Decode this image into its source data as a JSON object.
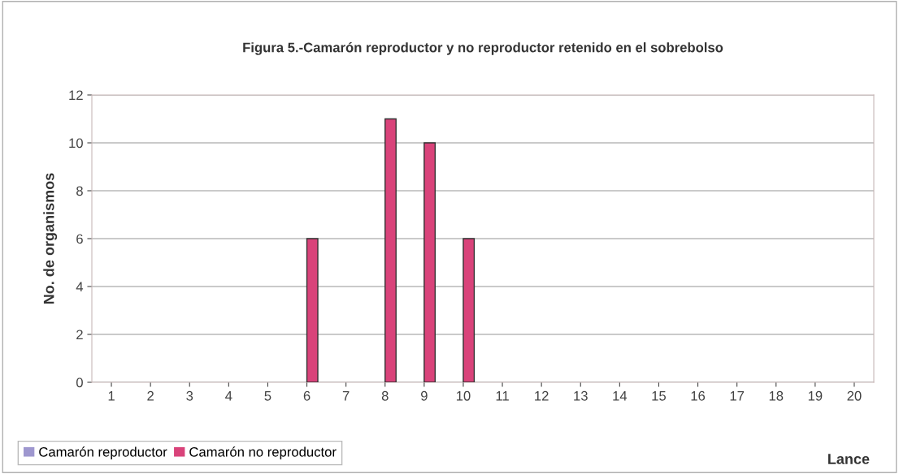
{
  "chart_data": {
    "type": "bar",
    "title": "Figura 5.-Camarón reproductor y no reproductor retenido en el sobrebolso",
    "xlabel": "Lance",
    "ylabel": "No. de organismos",
    "categories": [
      "1",
      "2",
      "3",
      "4",
      "5",
      "6",
      "7",
      "8",
      "9",
      "10",
      "11",
      "12",
      "13",
      "14",
      "15",
      "16",
      "17",
      "18",
      "19",
      "20"
    ],
    "series": [
      {
        "name": "Camarón reproductor",
        "color": "#9e97cf",
        "values": [
          0,
          0,
          0,
          0,
          0,
          0,
          0,
          0,
          0,
          0,
          0,
          0,
          0,
          0,
          0,
          0,
          0,
          0,
          0,
          0
        ]
      },
      {
        "name": "Camarón no reproductor",
        "color": "#d9437a",
        "values": [
          0,
          0,
          0,
          0,
          0,
          6,
          0,
          11,
          10,
          6,
          0,
          0,
          0,
          0,
          0,
          0,
          0,
          0,
          0,
          0
        ]
      }
    ],
    "ylim": [
      0,
      12
    ],
    "yticks": [
      0,
      2,
      4,
      6,
      8,
      10,
      12
    ],
    "grid": "y",
    "legend": "bottom left"
  }
}
